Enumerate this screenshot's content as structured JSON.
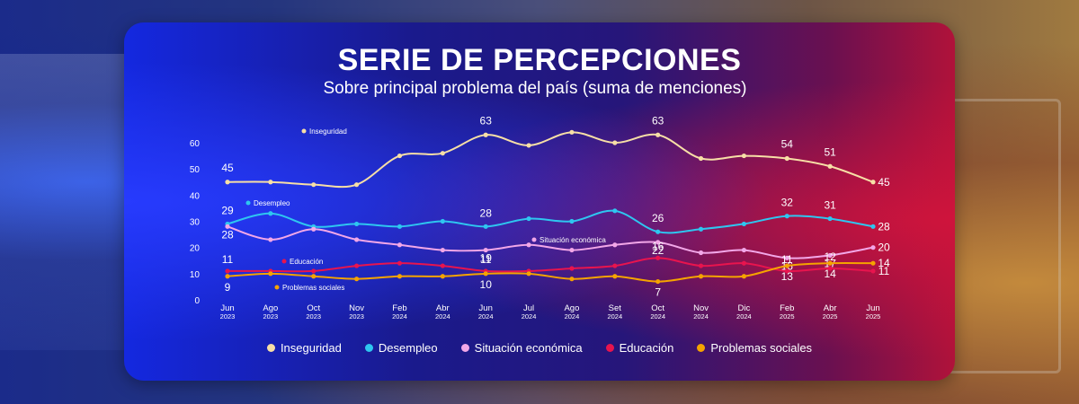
{
  "title": "SERIE DE PERCEPCIONES",
  "subtitle": "Sobre principal problema del país (suma de menciones)",
  "chart_data": {
    "type": "line",
    "x": [
      "Jun 2023",
      "Ago 2023",
      "Oct 2023",
      "Nov 2023",
      "Feb 2024",
      "Abr 2024",
      "Jun 2024",
      "Jul 2024",
      "Ago 2024",
      "Set 2024",
      "Oct 2024",
      "Nov 2024",
      "Dic 2024",
      "Feb 2025",
      "Abr 2025",
      "Jun 2025"
    ],
    "x_ticks": [
      {
        "m": "Jun",
        "y": "2023"
      },
      {
        "m": "Ago",
        "y": "2023"
      },
      {
        "m": "Oct",
        "y": "2023"
      },
      {
        "m": "Nov",
        "y": "2023"
      },
      {
        "m": "Feb",
        "y": "2024"
      },
      {
        "m": "Abr",
        "y": "2024"
      },
      {
        "m": "Jun",
        "y": "2024"
      },
      {
        "m": "Jul",
        "y": "2024"
      },
      {
        "m": "Ago",
        "y": "2024"
      },
      {
        "m": "Set",
        "y": "2024"
      },
      {
        "m": "Oct",
        "y": "2024"
      },
      {
        "m": "Nov",
        "y": "2024"
      },
      {
        "m": "Dic",
        "y": "2024"
      },
      {
        "m": "Feb",
        "y": "2025"
      },
      {
        "m": "Abr",
        "y": "2025"
      },
      {
        "m": "Jun",
        "y": "2025"
      }
    ],
    "ylim": [
      0,
      60
    ],
    "yticks": [
      0,
      10,
      20,
      30,
      40,
      50,
      60
    ],
    "series": [
      {
        "name": "Inseguridad",
        "color": "#f7dfa6",
        "values": [
          45,
          45,
          44,
          44,
          55,
          56,
          63,
          59,
          64,
          60,
          63,
          54,
          55,
          54,
          51,
          45
        ],
        "labels": [
          "45",
          "",
          "",
          "",
          "",
          "",
          "63",
          "",
          "",
          "",
          "63",
          "",
          "",
          "54",
          "51",
          "45"
        ]
      },
      {
        "name": "Desempleo",
        "color": "#2ec6f0",
        "values": [
          29,
          33,
          28,
          29,
          28,
          30,
          28,
          31,
          30,
          34,
          26,
          27,
          29,
          32,
          31,
          28
        ],
        "labels": [
          "29",
          "",
          "",
          "",
          "",
          "",
          "28",
          "",
          "",
          "",
          "26",
          "",
          "",
          "32",
          "31",
          "28"
        ]
      },
      {
        "name": "Situación económica",
        "color": "#f2a7e8",
        "values": [
          28,
          23,
          27,
          23,
          21,
          19,
          19,
          21,
          19,
          21,
          22,
          18,
          19,
          16,
          17,
          20
        ],
        "labels": [
          "28",
          "",
          "",
          "",
          "",
          "",
          "19",
          "",
          "",
          "",
          "22",
          "",
          "",
          "16",
          "17",
          "20"
        ]
      },
      {
        "name": "Educación",
        "color": "#e8144e",
        "values": [
          11,
          11,
          11,
          13,
          14,
          13,
          11,
          11,
          12,
          13,
          16,
          13,
          14,
          11,
          12,
          11
        ],
        "labels": [
          "11",
          "",
          "",
          "",
          "",
          "",
          "11",
          "",
          "",
          "",
          "16",
          "",
          "",
          "11",
          "12",
          "11"
        ]
      },
      {
        "name": "Problemas sociales",
        "color": "#f5a300",
        "values": [
          9,
          10,
          9,
          8,
          9,
          9,
          10,
          10,
          8,
          9,
          7,
          9,
          9,
          13,
          14,
          14
        ],
        "labels": [
          "9",
          "",
          "",
          "",
          "",
          "",
          "10",
          "",
          "",
          "",
          "7",
          "",
          "",
          "13",
          "14",
          "14"
        ]
      }
    ]
  }
}
